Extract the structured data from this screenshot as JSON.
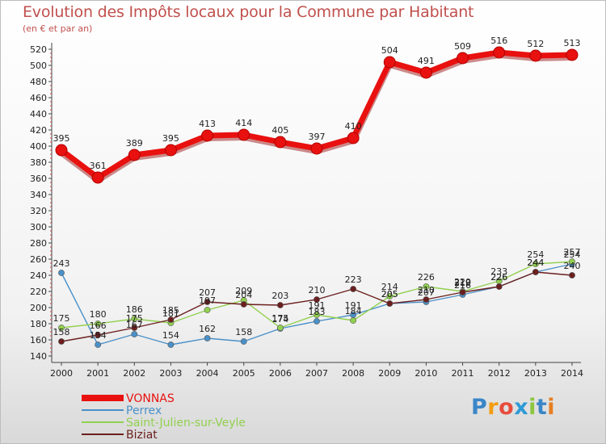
{
  "title": "Evolution des Impôts locaux pour la Commune par Habitant",
  "subtitle": "(en € et par an)",
  "logo_text": "Proxiti",
  "chart_data": {
    "type": "line",
    "title": "Evolution des Impôts locaux pour la Commune par Habitant",
    "subtitle": "(en € et par an)",
    "xlabel": "",
    "ylabel": "",
    "x": [
      "2000",
      "2001",
      "2002",
      "2003",
      "2004",
      "2005",
      "2006",
      "2007",
      "2008",
      "2009",
      "2010",
      "2011",
      "2012",
      "2013",
      "2014"
    ],
    "ylim": [
      140,
      520
    ],
    "ytick_step": 20,
    "grid": false,
    "legend_placement": "bottom-left",
    "series": [
      {
        "name": "VONNAS",
        "color": "#e8110f",
        "values": [
          395,
          361,
          389,
          395,
          413,
          414,
          405,
          397,
          410,
          504,
          491,
          509,
          516,
          512,
          513
        ]
      },
      {
        "name": "Perrex",
        "color": "#4a90c8",
        "values": [
          243,
          154,
          167,
          154,
          162,
          158,
          174,
          183,
          191,
          205,
          207,
          216,
          226,
          244,
          254
        ]
      },
      {
        "name": "Saint-Julien-sur-Veyle",
        "color": "#92d050",
        "values": [
          175,
          180,
          186,
          181,
          197,
          209,
          175,
          191,
          184,
          214,
          226,
          220,
          233,
          254,
          257
        ]
      },
      {
        "name": "Biziat",
        "color": "#6b1f1f",
        "values": [
          158,
          166,
          175,
          185,
          207,
          204,
          203,
          210,
          223,
          205,
          210,
          219,
          226,
          244,
          240
        ]
      }
    ]
  }
}
